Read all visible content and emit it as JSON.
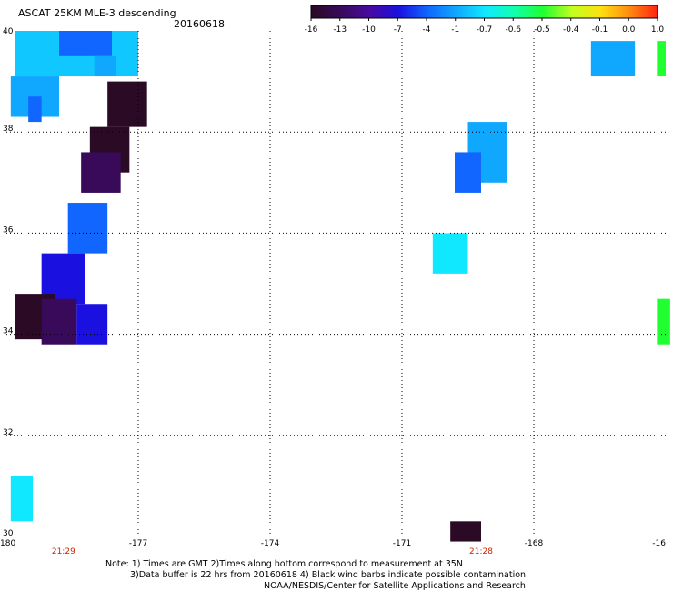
{
  "header": {
    "title": "ASCAT 25KM MLE-3 descending",
    "date": "20160618"
  },
  "colorbar": {
    "labels": [
      "-16",
      "-13",
      "-10",
      "-7",
      "-4",
      "-1",
      "-0.7",
      "-0.6",
      "-0.5",
      "-0.4",
      "-0.1",
      "0.0",
      "1.0"
    ],
    "colors": [
      "#2a0a24",
      "#3a0a5a",
      "#4a0aa0",
      "#1a10e0",
      "#1066ff",
      "#10a8ff",
      "#10e8ff",
      "#10ffb0",
      "#20ff30",
      "#c0ff20",
      "#ffe010",
      "#ff8a10",
      "#ff2010"
    ]
  },
  "map": {
    "lat_labels": [
      "40",
      "38",
      "36",
      "34",
      "32",
      "30"
    ],
    "lon_labels": [
      "-180",
      "-177",
      "-174",
      "-171",
      "-168",
      "-16"
    ],
    "time_labels": [
      {
        "text": "21:29",
        "lon": -178.7
      },
      {
        "text": "21:28",
        "lon": -169.2
      }
    ],
    "cells": [
      {
        "lon0": -179.8,
        "lon1": -177.0,
        "lat0": 39.1,
        "lat1": 40.0,
        "color": "#10c8ff"
      },
      {
        "lon0": -178.8,
        "lon1": -177.6,
        "lat0": 39.5,
        "lat1": 40.0,
        "color": "#1066ff"
      },
      {
        "lon0": -178.0,
        "lon1": -177.5,
        "lat0": 39.1,
        "lat1": 39.5,
        "color": "#10a8ff"
      },
      {
        "lon0": -179.9,
        "lon1": -178.8,
        "lat0": 38.3,
        "lat1": 39.1,
        "color": "#10a8ff"
      },
      {
        "lon0": -179.5,
        "lon1": -179.2,
        "lat0": 38.2,
        "lat1": 38.7,
        "color": "#1066ff"
      },
      {
        "lon0": -177.7,
        "lon1": -176.8,
        "lat0": 38.1,
        "lat1": 39.0,
        "color": "#2a0a24"
      },
      {
        "lon0": -178.1,
        "lon1": -177.2,
        "lat0": 37.2,
        "lat1": 38.1,
        "color": "#2a0a24"
      },
      {
        "lon0": -178.3,
        "lon1": -177.4,
        "lat0": 36.8,
        "lat1": 37.6,
        "color": "#3a0a5a"
      },
      {
        "lon0": -178.6,
        "lon1": -177.7,
        "lat0": 35.6,
        "lat1": 36.6,
        "color": "#1066ff"
      },
      {
        "lon0": -179.2,
        "lon1": -178.2,
        "lat0": 34.6,
        "lat1": 35.6,
        "color": "#1a10e0"
      },
      {
        "lon0": -179.8,
        "lon1": -178.9,
        "lat0": 33.9,
        "lat1": 34.8,
        "color": "#2a0a24"
      },
      {
        "lon0": -179.2,
        "lon1": -178.4,
        "lat0": 33.8,
        "lat1": 34.7,
        "color": "#3a0a5a"
      },
      {
        "lon0": -178.4,
        "lon1": -177.7,
        "lat0": 33.8,
        "lat1": 34.6,
        "color": "#1a10e0"
      },
      {
        "lon0": -179.9,
        "lon1": -179.4,
        "lat0": 30.3,
        "lat1": 31.2,
        "color": "#10e8ff"
      },
      {
        "lon0": -169.5,
        "lon1": -168.6,
        "lat0": 37.0,
        "lat1": 38.2,
        "color": "#10a8ff"
      },
      {
        "lon0": -169.8,
        "lon1": -169.2,
        "lat0": 36.8,
        "lat1": 37.6,
        "color": "#1066ff"
      },
      {
        "lon0": -170.3,
        "lon1": -169.5,
        "lat0": 35.2,
        "lat1": 36.0,
        "color": "#10e8ff"
      },
      {
        "lon0": -166.7,
        "lon1": -165.7,
        "lat0": 39.1,
        "lat1": 39.8,
        "color": "#10a8ff"
      },
      {
        "lon0": -165.2,
        "lon1": -165.0,
        "lat0": 39.1,
        "lat1": 39.8,
        "color": "#20ff30"
      },
      {
        "lon0": -165.2,
        "lon1": -164.9,
        "lat0": 33.8,
        "lat1": 34.7,
        "color": "#20ff30"
      },
      {
        "lon0": -169.9,
        "lon1": -169.2,
        "lat0": 29.9,
        "lat1": 30.3,
        "color": "#2a0a24"
      }
    ]
  },
  "footer": {
    "line1": "Note: 1) Times are GMT 2)Times along bottom correspond to measurement at 35N",
    "line2": "3)Data buffer is 22 hrs from 20160618 4) Black wind barbs indicate possible contamination",
    "line3": "NOAA/NESDIS/Center for Satellite Applications and Research"
  }
}
